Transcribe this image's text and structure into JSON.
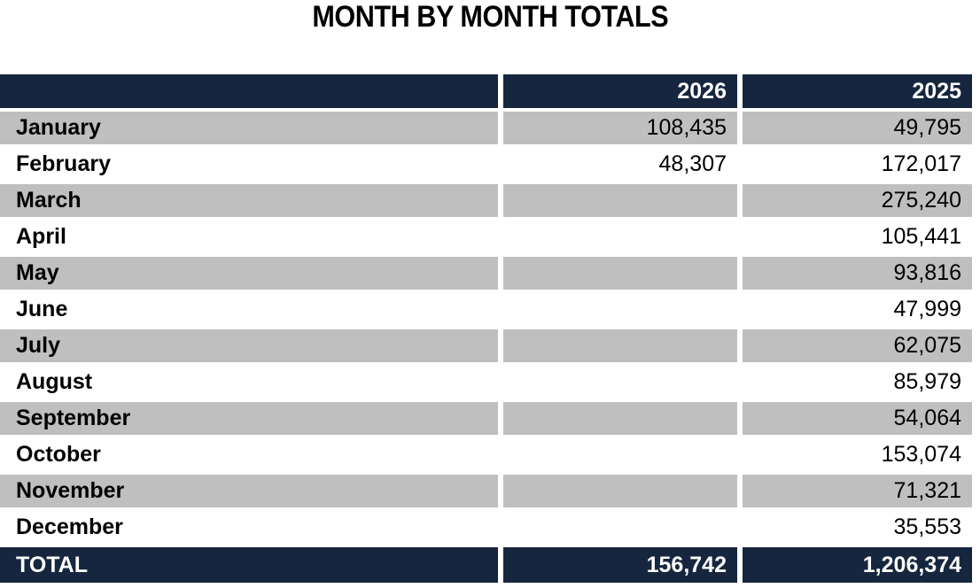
{
  "title": "MONTH BY MONTH TOTALS",
  "table": {
    "columns": [
      "",
      "2026",
      "2025"
    ],
    "rows": [
      {
        "month": "January",
        "y2026": "108,435",
        "y2025": "49,795"
      },
      {
        "month": "February",
        "y2026": "48,307",
        "y2025": "172,017"
      },
      {
        "month": "March",
        "y2026": "",
        "y2025": "275,240"
      },
      {
        "month": "April",
        "y2026": "",
        "y2025": "105,441"
      },
      {
        "month": "May",
        "y2026": "",
        "y2025": "93,816"
      },
      {
        "month": "June",
        "y2026": "",
        "y2025": "47,999"
      },
      {
        "month": "July",
        "y2026": "",
        "y2025": "62,075"
      },
      {
        "month": "August",
        "y2026": "",
        "y2025": "85,979"
      },
      {
        "month": "September",
        "y2026": "",
        "y2025": "54,064"
      },
      {
        "month": "October",
        "y2026": "",
        "y2025": "153,074"
      },
      {
        "month": "November",
        "y2026": "",
        "y2025": "71,321"
      },
      {
        "month": "December",
        "y2026": "",
        "y2025": "35,553"
      }
    ],
    "total": {
      "label": "TOTAL",
      "y2026": "156,742",
      "y2025": "1,206,374"
    }
  },
  "colors": {
    "header_bg": "#16263E",
    "total_bg": "#16263E",
    "alt_row_bg": "#BFBFBF",
    "row_bg": "#FFFFFF",
    "header_text": "#FFFFFF",
    "body_text": "#000000"
  },
  "chart_data": {
    "type": "table",
    "title": "MONTH BY MONTH TOTALS",
    "categories": [
      "January",
      "February",
      "March",
      "April",
      "May",
      "June",
      "July",
      "August",
      "September",
      "October",
      "November",
      "December"
    ],
    "series": [
      {
        "name": "2026",
        "values": [
          108435,
          48307,
          null,
          null,
          null,
          null,
          null,
          null,
          null,
          null,
          null,
          null
        ],
        "total": 156742
      },
      {
        "name": "2025",
        "values": [
          49795,
          172017,
          275240,
          105441,
          93816,
          47999,
          62075,
          85979,
          54064,
          153074,
          71321,
          35553
        ],
        "total": 1206374
      }
    ],
    "layout_hints": {
      "alternating_row_shading": true,
      "header_position": "top",
      "totals_row": "bottom",
      "values_align": "right"
    }
  }
}
